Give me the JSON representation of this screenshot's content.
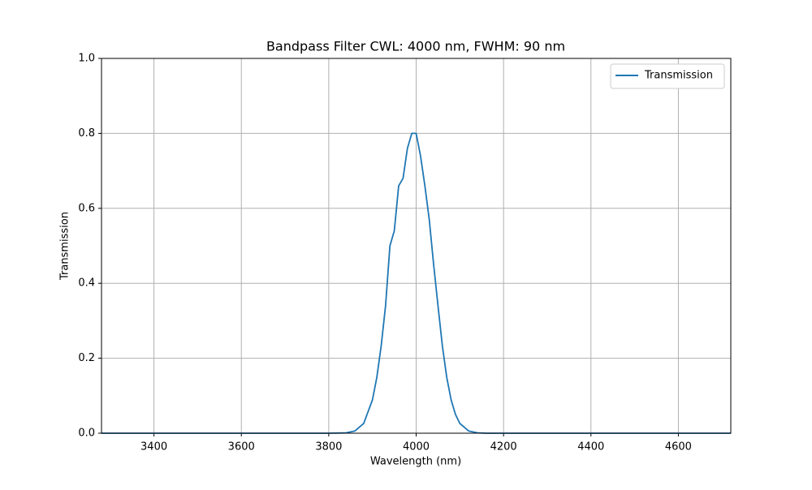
{
  "chart_data": {
    "type": "line",
    "title": "Bandpass Filter CWL: 4000 nm, FWHM: 90 nm",
    "xlabel": "Wavelength (nm)",
    "ylabel": "Transmission",
    "x": [
      3280,
      3800,
      3840,
      3860,
      3880,
      3900,
      3910,
      3920,
      3930,
      3940,
      3950,
      3960,
      3970,
      3980,
      3990,
      4000,
      4010,
      4020,
      4030,
      4040,
      4050,
      4060,
      4070,
      4080,
      4090,
      4100,
      4120,
      4140,
      4160,
      4200,
      4720
    ],
    "series": [
      {
        "name": "Transmission",
        "color": "#1f77b4",
        "values": [
          0,
          0,
          0.001,
          0.006,
          0.026,
          0.089,
          0.149,
          0.233,
          0.34,
          0.5,
          0.54,
          0.66,
          0.68,
          0.76,
          0.8,
          0.8,
          0.74,
          0.66,
          0.57,
          0.45,
          0.34,
          0.233,
          0.149,
          0.089,
          0.05,
          0.026,
          0.006,
          0.001,
          0,
          0,
          0
        ]
      }
    ],
    "xlim": [
      3280,
      4720
    ],
    "ylim": [
      0,
      1
    ],
    "xticks": [
      3400,
      3600,
      3800,
      4000,
      4200,
      4400,
      4600
    ],
    "yticks": [
      {
        "value": 0,
        "label": "0.0"
      },
      0.2,
      0.4,
      0.6,
      0.8,
      {
        "value": 1,
        "label": "1.0"
      }
    ],
    "grid": true,
    "legend": "upper right"
  }
}
